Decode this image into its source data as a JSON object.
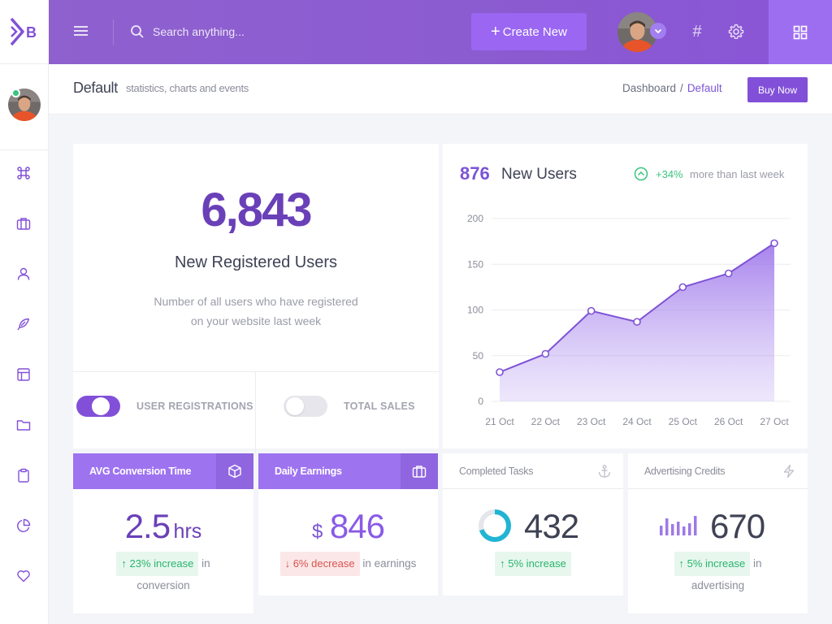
{
  "brand": {
    "logo_letter": "B",
    "accent": "#8250d8"
  },
  "header": {
    "search_placeholder": "Search anything...",
    "create_label": "Create New",
    "create_plus": "+",
    "hash_glyph": "#"
  },
  "page": {
    "title": "Default",
    "subtitle": "statistics, charts and events",
    "breadcrumb": [
      "Dashboard",
      "/",
      "Default"
    ],
    "buy_label": "Buy Now"
  },
  "registered": {
    "value": "6,843",
    "label": "New Registered Users",
    "desc_line1": "Number of all users who have registered",
    "desc_line2": "on your website last week",
    "toggles": [
      {
        "label": "USER REGISTRATIONS",
        "on": true
      },
      {
        "label": "TOTAL SALES",
        "on": false
      }
    ]
  },
  "new_users": {
    "value": "876",
    "label": "New Users",
    "trend_pct": "+34%",
    "trend_text": "more than last week"
  },
  "chart_data": {
    "type": "area",
    "title": "876 New Users",
    "categories": [
      "21 Oct",
      "22 Oct",
      "23 Oct",
      "24 Oct",
      "25 Oct",
      "26 Oct",
      "27 Oct"
    ],
    "values": [
      32,
      52,
      99,
      87,
      125,
      140,
      173
    ],
    "ylim": [
      0,
      200
    ],
    "yticks": [
      0,
      50,
      100,
      150,
      200
    ],
    "grid": true,
    "color": "#8250d8"
  },
  "stats": [
    {
      "title": "AVG Conversion Time",
      "prefix": "",
      "value": "2.5",
      "unit": "hrs",
      "change": "23% increase",
      "arrow": "↑",
      "direction": "up",
      "note_line1": "in",
      "note_line2": "conversion"
    },
    {
      "title": "Daily Earnings",
      "prefix": "$",
      "value": "846",
      "unit": "",
      "change": "6% decrease",
      "arrow": "↓",
      "direction": "down",
      "note_line1": "in earnings",
      "note_line2": ""
    },
    {
      "title": "Completed Tasks",
      "prefix": "",
      "value": "432",
      "unit": "",
      "change": "5% increase",
      "arrow": "↑",
      "direction": "up",
      "note_line1": "",
      "note_line2": "",
      "progress": 0.7
    },
    {
      "title": "Advertising Credits",
      "prefix": "",
      "value": "670",
      "unit": "",
      "change": "5% increase",
      "arrow": "↑",
      "direction": "up",
      "note_line1": "in",
      "note_line2": "advertising"
    }
  ]
}
